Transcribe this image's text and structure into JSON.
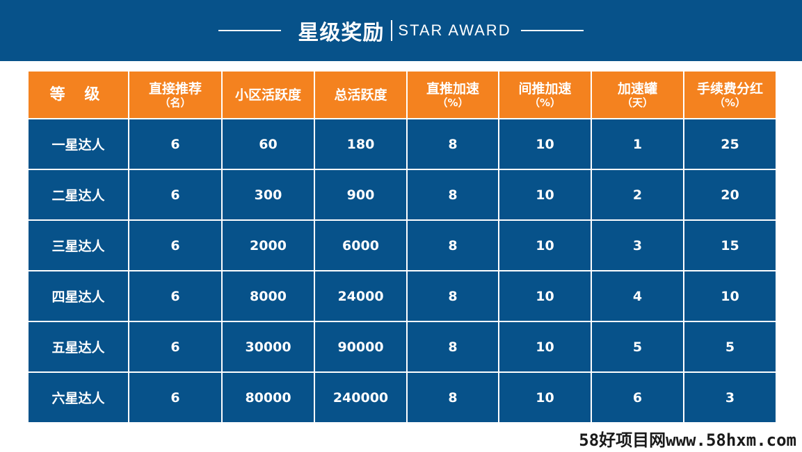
{
  "header": {
    "title_cn": "星级奖励",
    "title_en": "STAR AWARD"
  },
  "table": {
    "headers": [
      {
        "label": "等 级",
        "sub": ""
      },
      {
        "label": "直接推荐",
        "sub": "（名）"
      },
      {
        "label": "小区活跃度",
        "sub": ""
      },
      {
        "label": "总活跃度",
        "sub": ""
      },
      {
        "label": "直推加速",
        "sub": "（%）"
      },
      {
        "label": "间推加速",
        "sub": "（%）"
      },
      {
        "label": "加速罐",
        "sub": "（天）"
      },
      {
        "label": "手续费分红",
        "sub": "（%）"
      }
    ],
    "rows": [
      [
        "一星达人",
        "6",
        "60",
        "180",
        "8",
        "10",
        "1",
        "25"
      ],
      [
        "二星达人",
        "6",
        "300",
        "900",
        "8",
        "10",
        "2",
        "20"
      ],
      [
        "三星达人",
        "6",
        "2000",
        "6000",
        "8",
        "10",
        "3",
        "15"
      ],
      [
        "四星达人",
        "6",
        "8000",
        "24000",
        "8",
        "10",
        "4",
        "10"
      ],
      [
        "五星达人",
        "6",
        "30000",
        "90000",
        "8",
        "10",
        "5",
        "5"
      ],
      [
        "六星达人",
        "6",
        "80000",
        "240000",
        "8",
        "10",
        "6",
        "3"
      ]
    ]
  },
  "watermark": "58好项目网www.58hxm.com",
  "colors": {
    "blue": "#07528a",
    "orange": "#f4821f"
  }
}
